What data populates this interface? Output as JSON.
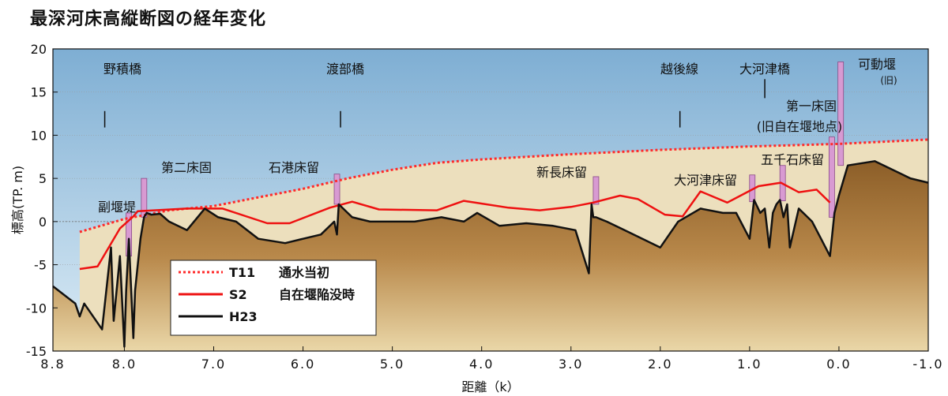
{
  "title": "最深河床高縦断図の経年変化",
  "chart_data": {
    "type": "line",
    "title": "最深河床高縦断図の経年変化",
    "xlabel": "距離（k）",
    "ylabel": "標高(TP. m)",
    "xlim": [
      8.8,
      -1.0
    ],
    "ylim": [
      -15,
      20
    ],
    "x_reversed": true,
    "x_ticks": [
      8.8,
      8.0,
      7.0,
      6.0,
      5.0,
      4.0,
      3.0,
      2.0,
      1.0,
      0.0,
      -1.0
    ],
    "x_tick_labels": [
      "8.8",
      "8.0",
      "7.0",
      "6.0",
      "5.0",
      "4.0",
      "3.0",
      "2.0",
      "1.0",
      "0.0",
      "-1.0"
    ],
    "y_ticks": [
      20,
      15,
      10,
      5,
      0,
      -5,
      -10,
      -15
    ],
    "y_tick_labels": [
      "20",
      "15",
      "10",
      "5",
      "0",
      "-5",
      "-10",
      "-15"
    ],
    "legend": [
      {
        "code": "T11",
        "label": "通水当初",
        "color": "#ff2a2a",
        "style": "dotted"
      },
      {
        "code": "S2",
        "label": "自在堰陥没時",
        "color": "#ee1111",
        "style": "solid"
      },
      {
        "code": "H23",
        "label": "",
        "color": "#111111",
        "style": "solid"
      }
    ],
    "series": [
      {
        "name": "T11",
        "x": [
          8.5,
          8.0,
          7.5,
          7.0,
          6.5,
          6.0,
          5.5,
          5.0,
          4.5,
          4.0,
          3.0,
          2.0,
          1.0,
          0.0,
          -1.0
        ],
        "values": [
          -1.2,
          0.3,
          1.3,
          1.8,
          2.8,
          3.8,
          5.0,
          6.0,
          6.8,
          7.2,
          7.8,
          8.3,
          8.7,
          9.0,
          9.5
        ]
      },
      {
        "name": "S2",
        "x": [
          8.5,
          8.3,
          8.05,
          7.9,
          7.85,
          7.3,
          6.9,
          6.4,
          6.15,
          5.7,
          5.45,
          5.15,
          4.5,
          4.2,
          3.7,
          3.35,
          3.0,
          2.75,
          2.45,
          2.25,
          1.95,
          1.75,
          1.55,
          1.25,
          0.9,
          0.65,
          0.45,
          0.25,
          0.1
        ],
        "values": [
          -5.5,
          -5.2,
          -0.8,
          0.6,
          1.2,
          1.5,
          1.5,
          -0.2,
          -0.2,
          1.6,
          2.3,
          1.4,
          1.3,
          2.4,
          1.6,
          1.3,
          1.7,
          2.2,
          3.0,
          2.6,
          0.8,
          0.6,
          3.5,
          2.2,
          4.1,
          4.5,
          3.4,
          3.7,
          2.2
        ]
      },
      {
        "name": "H23",
        "x": [
          8.8,
          8.55,
          8.5,
          8.45,
          8.25,
          8.15,
          8.12,
          8.05,
          8.0,
          7.98,
          7.95,
          7.9,
          7.88,
          7.82,
          7.78,
          7.75,
          7.7,
          7.6,
          7.5,
          7.3,
          7.1,
          6.95,
          6.75,
          6.5,
          6.2,
          6.0,
          5.8,
          5.65,
          5.62,
          5.6,
          5.55,
          5.45,
          5.25,
          5.0,
          4.75,
          4.45,
          4.2,
          4.05,
          3.8,
          3.5,
          3.2,
          2.95,
          2.8,
          2.77,
          2.75,
          2.72,
          2.6,
          2.4,
          2.2,
          2.0,
          1.8,
          1.55,
          1.3,
          1.15,
          1.0,
          0.95,
          0.88,
          0.83,
          0.78,
          0.74,
          0.7,
          0.66,
          0.62,
          0.58,
          0.55,
          0.45,
          0.3,
          0.2,
          0.1,
          0.05,
          0.0,
          -0.1,
          -0.4,
          -0.8,
          -1.0
        ],
        "values": [
          -7.5,
          -9.5,
          -11.0,
          -9.5,
          -12.5,
          -3.0,
          -11.5,
          -4.0,
          -14.5,
          -8.0,
          -2.0,
          -13.5,
          -8.0,
          -2.0,
          0.5,
          1.0,
          0.8,
          0.9,
          0.0,
          -1.0,
          1.5,
          0.5,
          0.0,
          -2.0,
          -2.5,
          -2.0,
          -1.5,
          0.0,
          -1.5,
          2.0,
          1.5,
          0.5,
          0.0,
          0.0,
          0.0,
          0.5,
          0.0,
          1.0,
          -0.5,
          -0.2,
          -0.5,
          -1.0,
          -6.0,
          2.0,
          0.5,
          0.5,
          0.0,
          -1.0,
          -2.0,
          -3.0,
          0.0,
          1.5,
          1.0,
          1.0,
          -2.0,
          2.5,
          1.0,
          1.5,
          -3.0,
          1.0,
          2.0,
          2.5,
          0.5,
          2.0,
          -3.0,
          1.5,
          0.0,
          -2.0,
          -4.0,
          1.0,
          3.0,
          6.5,
          7.0,
          5.0,
          4.5
        ]
      }
    ],
    "annotations": [
      {
        "text": "野積橋",
        "x": 8.22,
        "type": "bridge"
      },
      {
        "text": "渡部橋",
        "x": 5.58,
        "type": "bridge"
      },
      {
        "text": "越後線",
        "x": 1.78,
        "type": "bridge"
      },
      {
        "text": "大河津橋",
        "x": 0.83,
        "type": "bridge"
      },
      {
        "text": "可動堰",
        "x": -0.02,
        "type": "weir"
      },
      {
        "text": "(旧)",
        "type": "note"
      },
      {
        "text": "副堰堤",
        "x": 7.95,
        "type": "structure"
      },
      {
        "text": "第二床固",
        "x": 7.75,
        "type": "structure"
      },
      {
        "text": "石港床留",
        "x": 5.62,
        "type": "structure"
      },
      {
        "text": "新長床留",
        "x": 2.73,
        "type": "structure"
      },
      {
        "text": "大河津床留",
        "x": 0.97,
        "type": "structure"
      },
      {
        "text": "五千石床留",
        "x": 0.62,
        "type": "structure"
      },
      {
        "text": "第一床固",
        "x": 0.05,
        "type": "structure"
      },
      {
        "text": "(旧自在堰地点)",
        "type": "note"
      }
    ]
  }
}
